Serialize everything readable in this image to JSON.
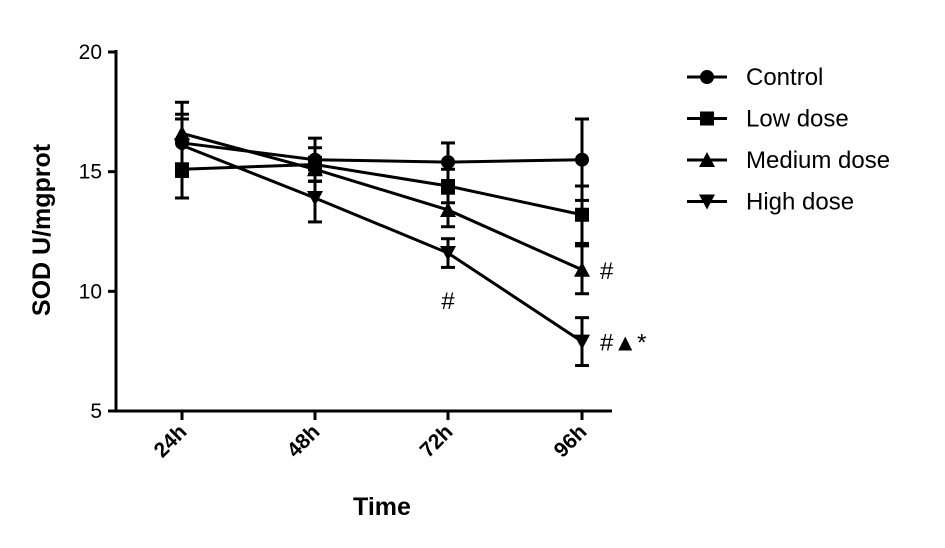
{
  "chart_data": {
    "type": "line",
    "xlabel": "Time",
    "ylabel": "SOD  U/mgprot",
    "categories": [
      "24h",
      "48h",
      "72h",
      "96h"
    ],
    "ylim": [
      5,
      20
    ],
    "yticks": [
      "5",
      "10",
      "15",
      "20"
    ],
    "legend_position": "right",
    "grid": false,
    "series": [
      {
        "name": "Control",
        "marker": "circle",
        "values": [
          16.2,
          15.5,
          15.4,
          15.5
        ],
        "errors": [
          1.0,
          0.9,
          0.8,
          1.7
        ]
      },
      {
        "name": "Low dose",
        "marker": "square",
        "values": [
          15.1,
          15.3,
          14.4,
          13.2
        ],
        "errors": [
          1.2,
          0.7,
          0.7,
          1.2
        ]
      },
      {
        "name": "Medium dose",
        "marker": "triangle-up",
        "values": [
          16.6,
          15.1,
          13.4,
          10.9
        ],
        "errors": [
          1.3,
          0.5,
          0.7,
          1.0
        ]
      },
      {
        "name": "High dose",
        "marker": "triangle-down",
        "values": [
          16.1,
          13.9,
          11.6,
          7.9
        ],
        "errors": [
          1.3,
          1.0,
          0.6,
          1.0
        ]
      }
    ],
    "annotations": [
      {
        "text": "#",
        "category": "72h"
      },
      {
        "text": "#",
        "category": "96h",
        "series": "Medium dose"
      },
      {
        "text": "#▲*",
        "category": "96h",
        "series": "High dose"
      }
    ]
  }
}
